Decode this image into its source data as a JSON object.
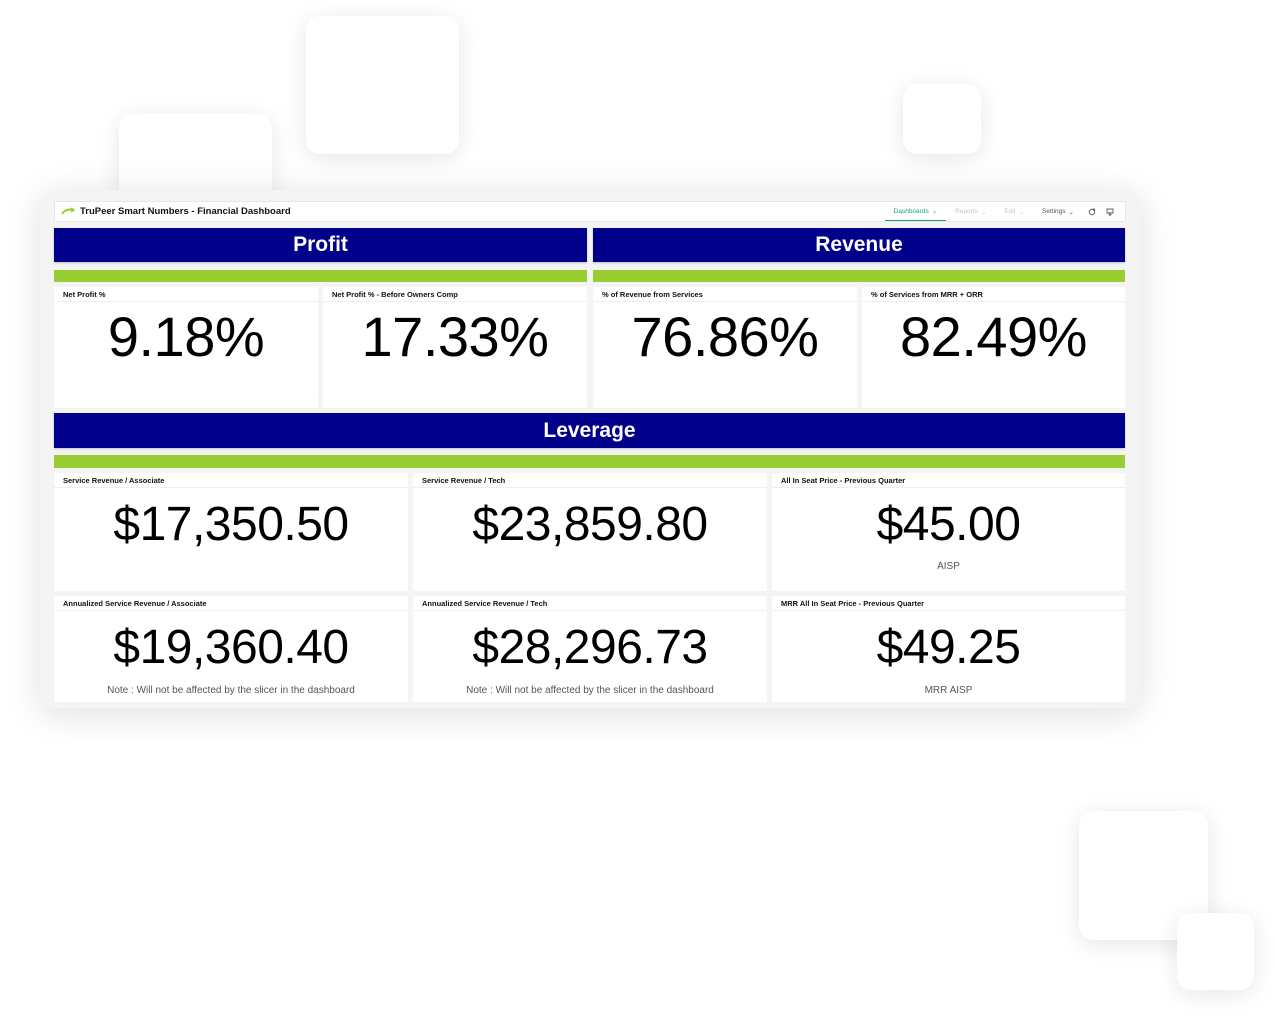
{
  "app": {
    "title": "TruPeer Smart Numbers - Financial Dashboard"
  },
  "nav": {
    "items": [
      {
        "label": "Dashboards",
        "state": "active"
      },
      {
        "label": "Reports",
        "state": "muted"
      },
      {
        "label": "Edit",
        "state": "muted"
      },
      {
        "label": "Settings",
        "state": "normal"
      }
    ],
    "icons": [
      "refresh-icon",
      "download-icon"
    ]
  },
  "colors": {
    "header_bg": "#00008b",
    "accent_bar": "#9acd32",
    "active_nav": "#1e9e74"
  },
  "sections": {
    "profit": "Profit",
    "revenue": "Revenue",
    "leverage": "Leverage"
  },
  "kpis_top": [
    {
      "title": "Net Profit %",
      "value": "9.18%"
    },
    {
      "title": "Net Profit % - Before Owners Comp",
      "value": "17.33%"
    },
    {
      "title": "% of Revenue from Services",
      "value": "76.86%"
    },
    {
      "title": "% of Services from MRR + ORR",
      "value": "82.49%"
    }
  ],
  "kpis_leverage": [
    {
      "title": "Service Revenue / Associate",
      "value": "$17,350.50",
      "note": ""
    },
    {
      "title": "Service Revenue / Tech",
      "value": "$23,859.80",
      "note": ""
    },
    {
      "title": "All In Seat Price - Previous Quarter",
      "value": "$45.00",
      "note": "AISP"
    },
    {
      "title": "Annualized Service Revenue / Associate",
      "value": "$19,360.40",
      "note": "Note : Will not be affected by the slicer in the dashboard"
    },
    {
      "title": "Annualized Service Revenue / Tech",
      "value": "$28,296.73",
      "note": "Note : Will not be affected by the slicer in the dashboard"
    },
    {
      "title": "MRR All In Seat Price - Previous Quarter",
      "value": "$49.25",
      "note": "MRR AISP"
    }
  ]
}
